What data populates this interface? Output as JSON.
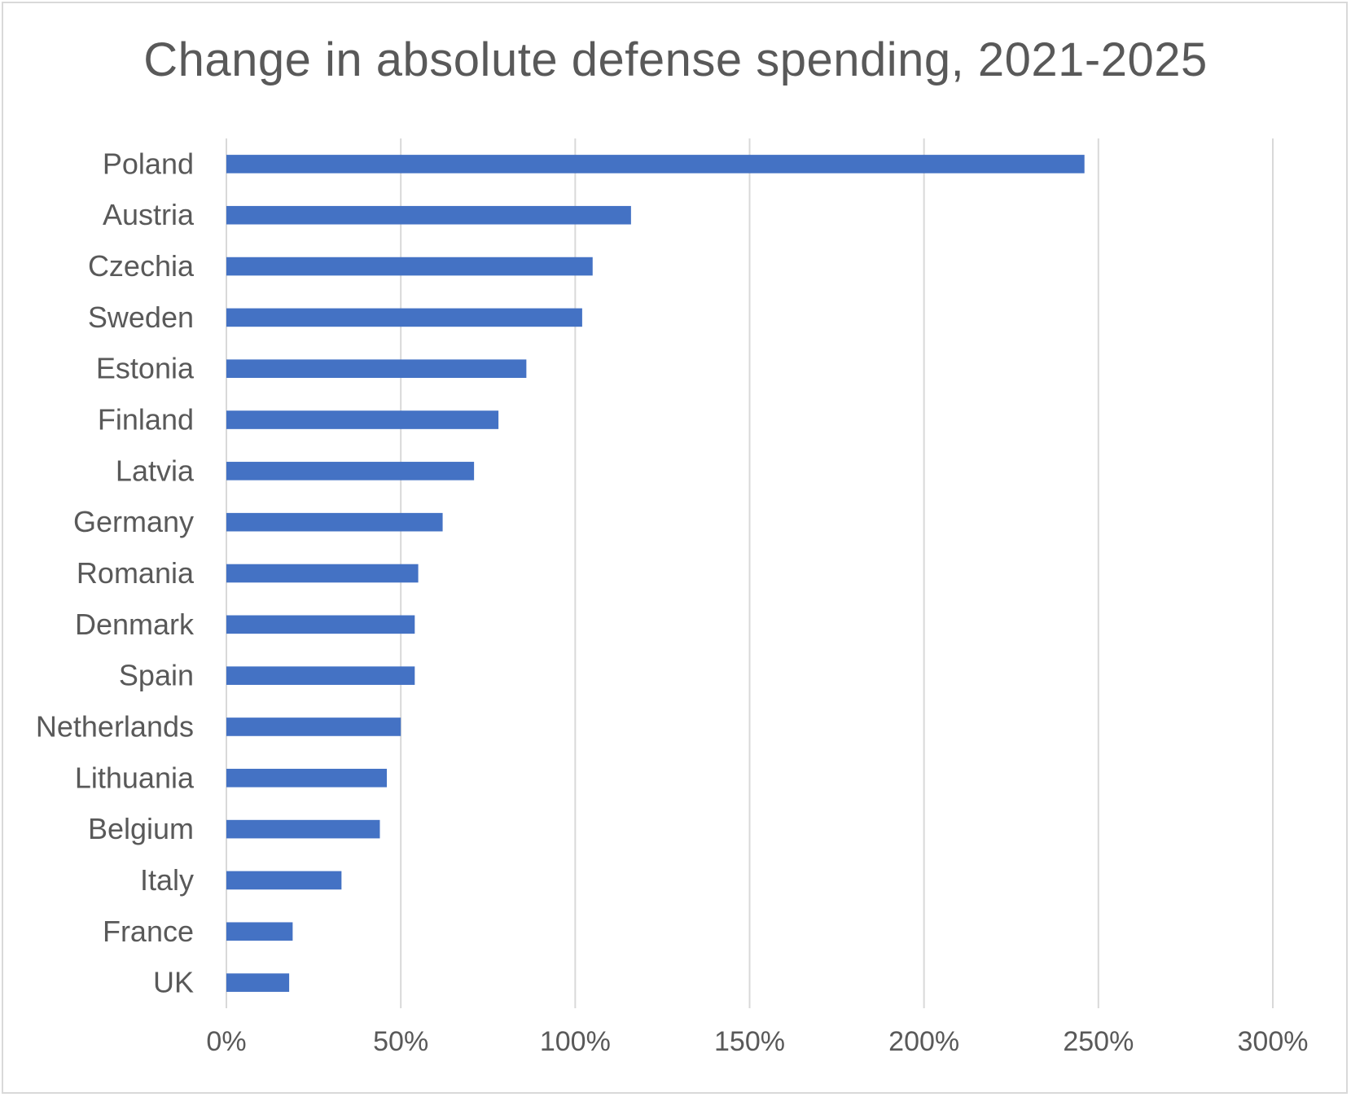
{
  "chart_data": {
    "type": "bar",
    "orientation": "horizontal",
    "title": "Change in absolute defense spending, 2021-2025",
    "xlabel": "",
    "ylabel": "",
    "xlim": [
      0,
      300
    ],
    "x_ticks": [
      0,
      50,
      100,
      150,
      200,
      250,
      300
    ],
    "x_tick_labels": [
      "0%",
      "50%",
      "100%",
      "150%",
      "200%",
      "250%",
      "300%"
    ],
    "grid": "vertical",
    "legend": "none",
    "categories": [
      "Poland",
      "Austria",
      "Czechia",
      "Sweden",
      "Estonia",
      "Finland",
      "Latvia",
      "Germany",
      "Romania",
      "Denmark",
      "Spain",
      "Netherlands",
      "Lithuania",
      "Belgium",
      "Italy",
      "France",
      "UK"
    ],
    "values": [
      246,
      116,
      105,
      102,
      86,
      78,
      71,
      62,
      55,
      54,
      54,
      50,
      46,
      44,
      33,
      19,
      18
    ],
    "value_unit": "%",
    "bar_color": "#4472c4",
    "gridline_color": "#d9d9d9",
    "text_color": "#595959"
  }
}
